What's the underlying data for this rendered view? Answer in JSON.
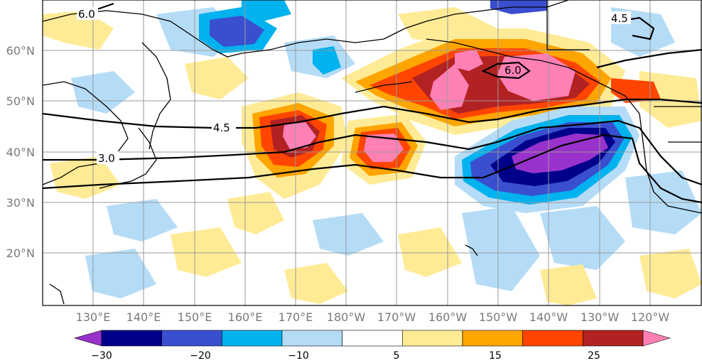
{
  "map": {
    "lat_labels": [
      "60°N",
      "50°N",
      "40°N",
      "30°N",
      "20°N"
    ],
    "lon_labels": [
      "130°E",
      "140°E",
      "150°E",
      "160°E",
      "170°E",
      "180°W",
      "170°W",
      "160°W",
      "150°W",
      "140°W",
      "130°W",
      "120°W"
    ],
    "contour_labels": [
      "6.0",
      "4.5",
      "3.0",
      "4.5",
      "6.0"
    ]
  },
  "colorbar": {
    "colors": [
      "#9932cc",
      "#00008b",
      "#3a4fcf",
      "#00b2ee",
      "#b4dcf7",
      "#ffffff",
      "#ffeb96",
      "#ffa500",
      "#ff4500",
      "#b22222",
      "#ff80b4"
    ],
    "tick_labels": [
      "−30",
      "−20",
      "−10",
      "5",
      "15",
      "25"
    ]
  },
  "colors": {
    "land_outline": "#000000",
    "grid": "#9a9a9a",
    "tick_text": "#7a7a7a"
  }
}
